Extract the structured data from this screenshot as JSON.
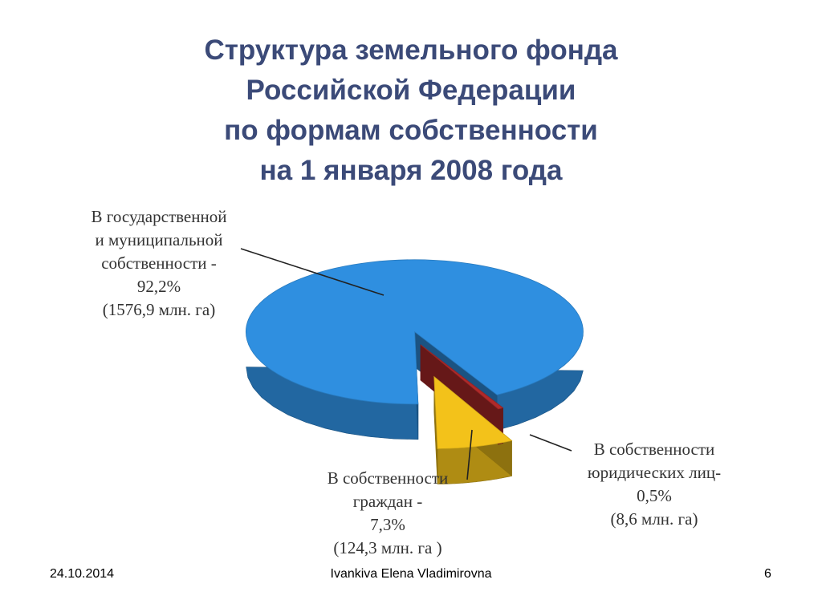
{
  "slide": {
    "title_lines": [
      "Структура земельного фонда",
      "Российской Федерации",
      "по формам собственности",
      "на 1 января 2008 года"
    ],
    "footer": {
      "date": "24.10.2014",
      "author": "Ivankiva Elena Vladimirovna",
      "page": "6"
    }
  },
  "chart_data": {
    "type": "pie",
    "style": "3d-exploded",
    "slices": [
      {
        "name": "В государственной и муниципальной собственности",
        "percent": 92.2,
        "area_mln_ha": 1576.9,
        "color": "#2f8fe0",
        "label_lines": [
          "В государственной",
          "и муниципальной",
          "собственности -",
          "92,2%",
          "(1576,9 млн. га)"
        ]
      },
      {
        "name": "В собственности граждан",
        "percent": 7.3,
        "area_mln_ha": 124.3,
        "color": "#f3c21a",
        "label_lines": [
          "В собственности",
          "граждан -",
          "7,3%",
          "(124,3 млн. га )"
        ]
      },
      {
        "name": "В собственности юридических лиц",
        "percent": 0.5,
        "area_mln_ha": 8.6,
        "color": "#b02a2a",
        "label_lines": [
          "В собственности",
          "юридических лиц-",
          "0,5%",
          "(8,6 млн. га)"
        ]
      }
    ]
  }
}
